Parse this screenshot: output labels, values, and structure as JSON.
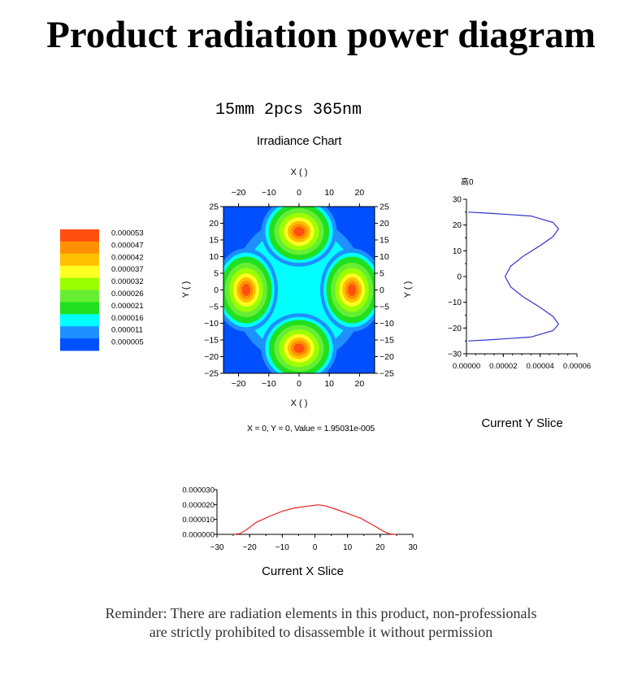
{
  "page": {
    "title": "Product radiation power diagram",
    "spec": "15mm 2pcs 365nm",
    "reminder_line1": "Reminder: There are radiation elements in this product, non-professionals",
    "reminder_line2": "are strictly prohibited to disassemble it without permission"
  },
  "colors": {
    "levels": [
      "#0050ff",
      "#1e90ff",
      "#00ffff",
      "#20e020",
      "#66ee33",
      "#9cff00",
      "#ffff20",
      "#ffc000",
      "#ff9000",
      "#ff5010"
    ],
    "slice_y_line": "#3333cc",
    "slice_x_line": "#ee2222"
  },
  "chart_data": [
    {
      "type": "heatmap",
      "title": "Irradiance Chart",
      "xlabel": "X ( )",
      "ylabel": "Y ( )",
      "xlim": [
        -25,
        25
      ],
      "ylim": [
        -25,
        25
      ],
      "x_ticks": [
        -20,
        -10,
        0,
        10,
        20
      ],
      "y_ticks": [
        25,
        20,
        15,
        10,
        5,
        0,
        -5,
        -10,
        -15,
        -20,
        -25
      ],
      "peaks": [
        {
          "x": 0,
          "y": 17.5
        },
        {
          "x": 0,
          "y": -17.5
        },
        {
          "x": 17.5,
          "y": 0
        },
        {
          "x": -17.5,
          "y": 0
        }
      ],
      "legend": {
        "placement": "left",
        "levels": [
          "0.000053",
          "0.000047",
          "0.000042",
          "0.000037",
          "0.000032",
          "0.000026",
          "0.000021",
          "0.000016",
          "0.000011",
          "0.000005"
        ]
      },
      "readout": "X = 0, Y = 0, Value = 1.95031e-005"
    },
    {
      "type": "line",
      "title": "Current Y Slice",
      "ylabel": "高0",
      "xlim": [
        0,
        6e-05
      ],
      "ylim": [
        -30,
        30
      ],
      "x_ticks": [
        "0.00000",
        "0.00002",
        "0.00004",
        "0.00006"
      ],
      "y_ticks": [
        30,
        20,
        10,
        0,
        -10,
        -20,
        -30
      ],
      "points": [
        [
          1e-06,
          25
        ],
        [
          1.2e-05,
          24.6
        ],
        [
          3.5e-05,
          23.5
        ],
        [
          4.7e-05,
          21
        ],
        [
          5e-05,
          18.5
        ],
        [
          4.7e-05,
          15.5
        ],
        [
          4e-05,
          12
        ],
        [
          3.1e-05,
          8
        ],
        [
          2.4e-05,
          4
        ],
        [
          2.1e-05,
          0
        ],
        [
          2.4e-05,
          -4
        ],
        [
          3.1e-05,
          -8
        ],
        [
          4e-05,
          -12
        ],
        [
          4.7e-05,
          -15.5
        ],
        [
          5e-05,
          -18.5
        ],
        [
          4.7e-05,
          -21
        ],
        [
          3.5e-05,
          -23.5
        ],
        [
          1.2e-05,
          -24.6
        ],
        [
          1e-06,
          -25
        ]
      ]
    },
    {
      "type": "line",
      "title": "Current X Slice",
      "xlim": [
        -30,
        30
      ],
      "ylim": [
        0,
        3e-05
      ],
      "x_ticks": [
        -30,
        -20,
        -10,
        0,
        10,
        20,
        30
      ],
      "y_ticks": [
        "0.000030",
        "0.000020",
        "0.000010",
        "0.000000"
      ],
      "points": [
        [
          -25,
          0
        ],
        [
          -23,
          5e-07
        ],
        [
          -21,
          3e-06
        ],
        [
          -18,
          8e-06
        ],
        [
          -14,
          1.2e-05
        ],
        [
          -10,
          1.55e-05
        ],
        [
          -6,
          1.78e-05
        ],
        [
          -2,
          1.9e-05
        ],
        [
          1,
          1.98e-05
        ],
        [
          3,
          1.92e-05
        ],
        [
          6,
          1.72e-05
        ],
        [
          10,
          1.4e-05
        ],
        [
          14,
          1.08e-05
        ],
        [
          18,
          6e-06
        ],
        [
          21,
          2e-06
        ],
        [
          23,
          3e-07
        ],
        [
          25,
          0
        ]
      ]
    }
  ]
}
